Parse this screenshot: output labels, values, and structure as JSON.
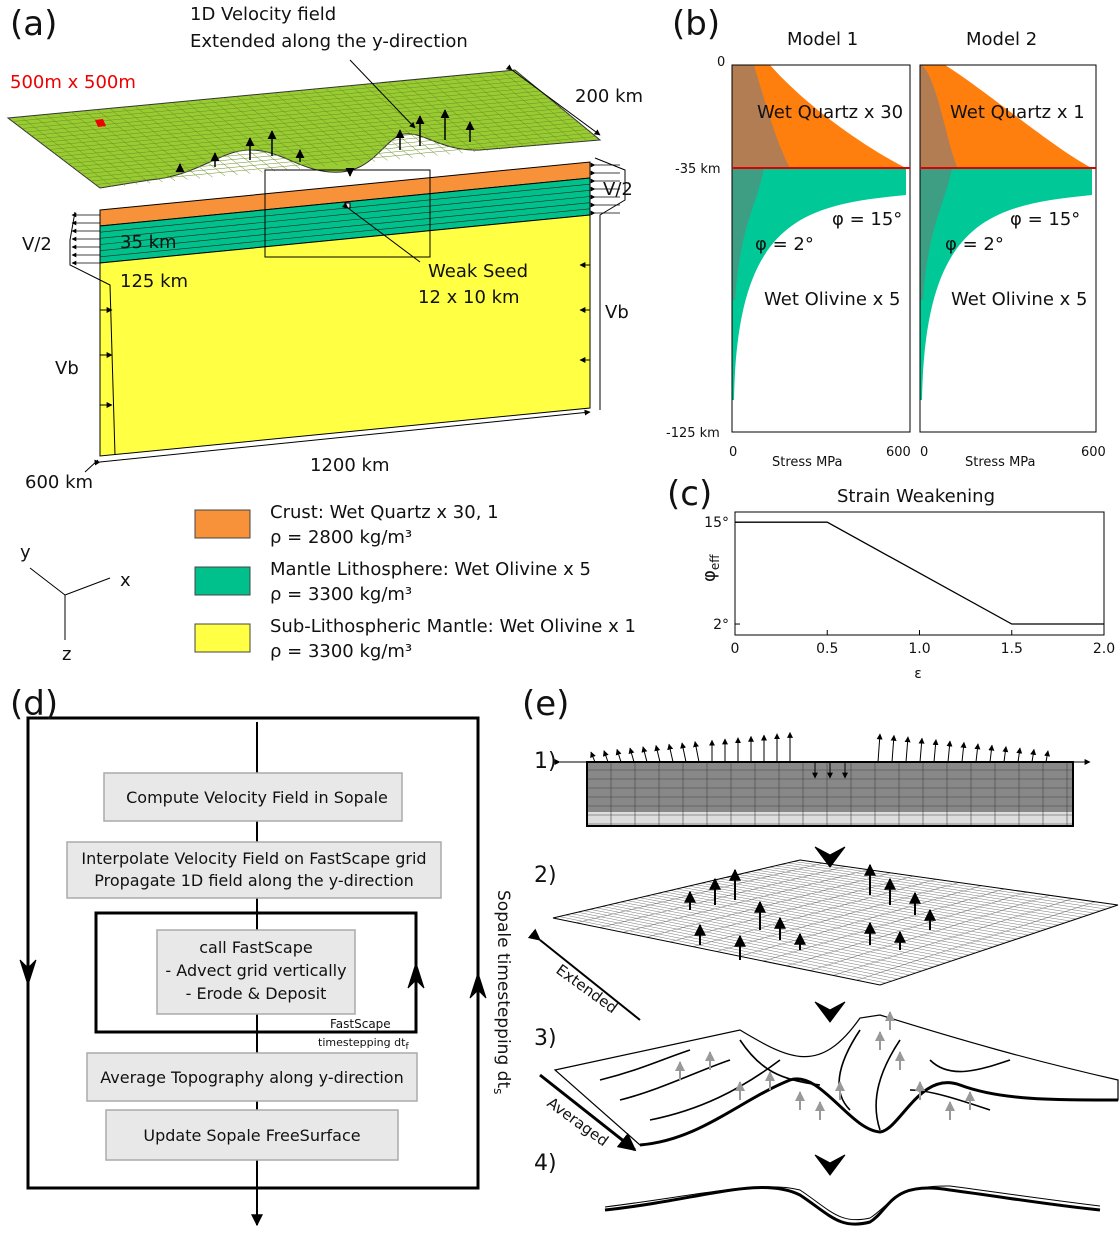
{
  "panel_a": {
    "label": "(a)",
    "velocity_title": [
      "1D Velocity field",
      "Extended along the y-direction"
    ],
    "resolution": "500m x 500m",
    "width": "200 km",
    "side_velocity": "V/2",
    "crust_depth": "35 km",
    "lithosphere_depth": "125 km",
    "seed": [
      "Weak Seed",
      "12 x 10 km"
    ],
    "bottom_velocity": "Vb",
    "length": "1200 km",
    "depth": "600 km",
    "legend": [
      {
        "name": "Crust: Wet Quartz x 30, 1",
        "density": "ρ = 2800 kg/m³",
        "color": "#f7923a"
      },
      {
        "name": "Mantle Lithosphere: Wet Olivine x 5",
        "density": "ρ = 3300 kg/m³",
        "color": "#00c08b"
      },
      {
        "name": "Sub-Lithospheric Mantle: Wet Olivine x 1",
        "density": "ρ = 3300 kg/m³",
        "color": "#ffff44"
      }
    ],
    "axes": [
      "y",
      "x",
      "z"
    ]
  },
  "panel_b": {
    "label": "(b)",
    "depth_labels": [
      "0",
      "-35 km",
      "-125 km"
    ],
    "stress_labels": [
      "0",
      "Stress MPa",
      "600"
    ],
    "models": [
      {
        "title": "Model 1",
        "crust": "Wet Quartz x 30",
        "phi_high": "φ = 15°",
        "phi_low": "φ = 2°",
        "mantle": "Wet Olivine x 5"
      },
      {
        "title": "Model 2",
        "crust": "Wet Quartz x 1",
        "phi_high": "φ = 15°",
        "phi_low": "φ = 2°",
        "mantle": "Wet Olivine x 5"
      }
    ]
  },
  "panel_c": {
    "label": "(c)",
    "type": "line",
    "title": "Strain Weakening",
    "xlabel": "ε",
    "ylabel": {
      "symbol": "φ",
      "subscript": "eff"
    },
    "x": [
      0,
      0.5,
      1.5,
      2
    ],
    "values": [
      15,
      15,
      2,
      2
    ],
    "color": "#000000",
    "xlim": [
      0,
      2
    ],
    "ylim": [
      0.6,
      16.3
    ],
    "xticks": [
      0,
      0.5,
      {
        "value": 1,
        "label": "1.0"
      },
      1.5,
      {
        "value": 2,
        "label": "2.0"
      }
    ],
    "yticks": [
      {
        "value": 15,
        "label": "15°"
      },
      {
        "value": 2,
        "label": "2°"
      }
    ]
  },
  "panel_d": {
    "label": "(d)",
    "steps": [
      "Compute Velocity Field in Sopale",
      [
        "Interpolate Velocity Field on FastScape grid",
        "Propagate 1D field along the y-direction"
      ],
      [
        "call FastScape",
        "- Advect grid vertically",
        "- Erode & Deposit"
      ],
      "Average Topography along y-direction",
      "Update Sopale FreeSurface"
    ],
    "inner_loop": [
      "FastScape",
      "timestepping dt",
      "f"
    ],
    "outer_loop": [
      "Sopale timestepping dt",
      "s"
    ]
  },
  "panel_e": {
    "label": "(e)",
    "steps": [
      "1)",
      "2)",
      "3)",
      "4)"
    ],
    "extended": "Extended",
    "averaged": "Averaged"
  }
}
